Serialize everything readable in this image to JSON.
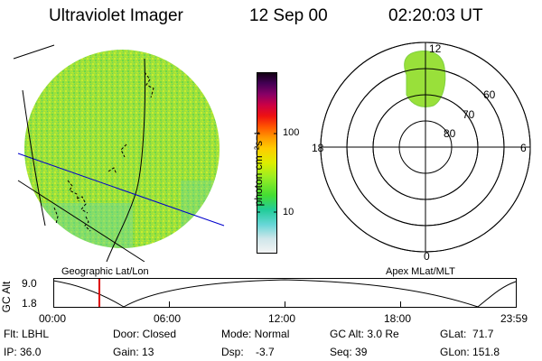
{
  "header": {
    "instrument": "Ultraviolet Imager",
    "date": "12 Sep 00",
    "time": "02:20:03 UT"
  },
  "colorbar": {
    "unit_label": "photon cm⁻²s⁻¹",
    "tick_100": "100",
    "tick_10": "10",
    "colors": [
      "#f2f2f2",
      "#c9e4e8",
      "#7fd6d6",
      "#33cccc",
      "#22cc88",
      "#44dd33",
      "#99ee22",
      "#ccee11",
      "#eeee00",
      "#ffcc00",
      "#ff9900",
      "#ff5500",
      "#ee1111",
      "#cc0033",
      "#990055",
      "#550066",
      "#1a0022"
    ]
  },
  "polar_plot": {
    "mlt_labels": {
      "top": "12",
      "left": "18",
      "right": "6",
      "bottom": "0"
    },
    "lat_labels": [
      "60",
      "70",
      "80"
    ],
    "projection_label": "Apex MLat/MLT"
  },
  "image_panel": {
    "projection_label": "Geographic Lat/Lon",
    "emission_color": "#99e03a"
  },
  "altitude_plot": {
    "axis_label": "GC Alt",
    "ymax": "9.0",
    "ymin": "1.8",
    "x_ticks": [
      "00:00",
      "06:00",
      "12:00",
      "18:00",
      "23:59"
    ],
    "current_time_marker_color": "#dd0000"
  },
  "status": {
    "flt": "Flt: LBHL",
    "ip": "IP: 36.0",
    "door": "Door: Closed",
    "gain": "Gain: 13",
    "mode": "Mode: Normal",
    "dsp": "Dsp:    -3.7",
    "gc_alt": "GC Alt: 3.0 Re",
    "seq": "Seq: 39",
    "glat": "GLat:  71.7",
    "glon": "GLon: 151.8"
  }
}
